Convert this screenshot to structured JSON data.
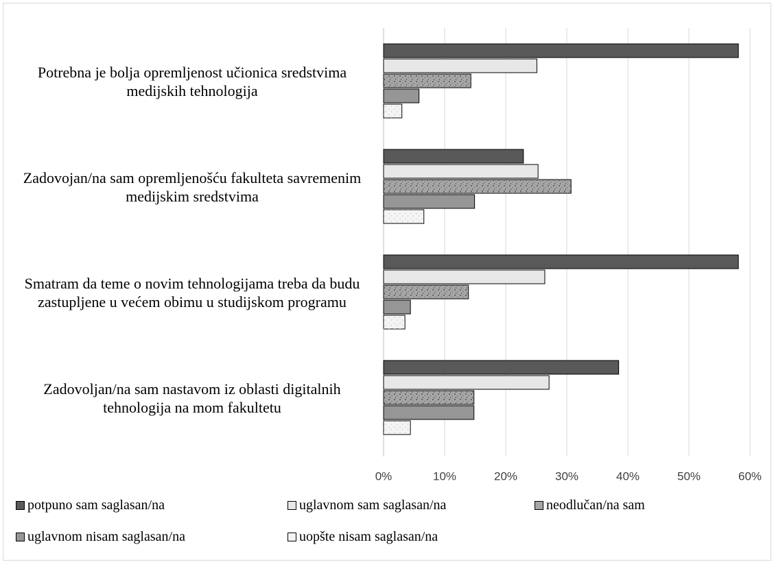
{
  "chart_data": {
    "type": "bar",
    "orientation": "horizontal",
    "categories": [
      "Potrebna je bolja opremljenost učionica sredstvima medijskih tehnologija",
      "Zadovojan/na sam opremljenošću fakulteta savremenim medijskim sredstvima",
      "Smatram da teme o novim tehnologijama treba da budu zastupljene u većem obimu u studijskom programu",
      "Zadovoljan/na sam nastavom iz oblasti digitalnih tehnologija na mom fakultetu"
    ],
    "series": [
      {
        "name": "potpuno sam saglasan/na",
        "color": "#595959",
        "values": [
          58.1,
          22.9,
          58.1,
          38.5
        ]
      },
      {
        "name": "uglavnom sam saglasan/na",
        "color": "#e7e7e7",
        "values": [
          25.1,
          25.3,
          26.4,
          27.1
        ]
      },
      {
        "name": "neodlučan/na sam",
        "color": "#a6a6a6",
        "values": [
          14.3,
          30.7,
          13.9,
          14.8
        ]
      },
      {
        "name": "uglavnom nisam saglasan/na",
        "color": "#969696",
        "values": [
          5.8,
          14.9,
          4.4,
          14.8
        ]
      },
      {
        "name": "uopšte nisam saglasan/na",
        "color": "#f4f4f4",
        "values": [
          3.0,
          6.6,
          3.5,
          4.4
        ]
      }
    ],
    "xlim": [
      0,
      60
    ],
    "xticks": [
      {
        "value": 0,
        "label": "0%"
      },
      {
        "value": 10,
        "label": "10%"
      },
      {
        "value": 20,
        "label": "20%"
      },
      {
        "value": 30,
        "label": "30%"
      },
      {
        "value": 40,
        "label": "40%"
      },
      {
        "value": 50,
        "label": "50%"
      },
      {
        "value": 60,
        "label": "60%"
      }
    ],
    "grid": true,
    "legend": "bottom"
  }
}
